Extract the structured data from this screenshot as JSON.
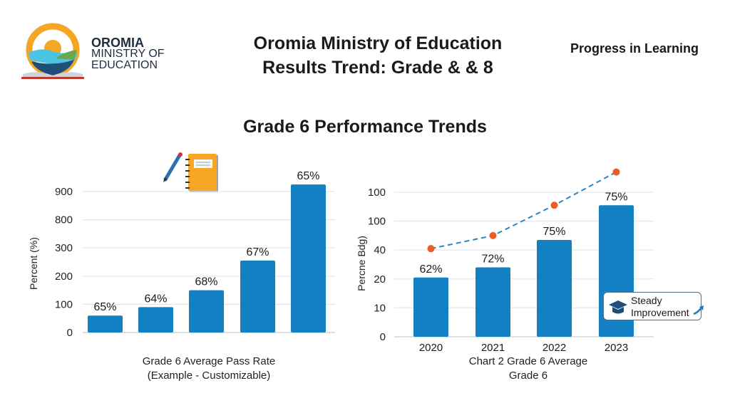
{
  "logo": {
    "line1": "OROMIA",
    "line2": "MINISTRY OF",
    "line3": "EDUCATION"
  },
  "header": {
    "title_line1": "Oromia Ministry of Education",
    "title_line2": "Results Trend: Grade & & 8",
    "tagline": "Progress in Learning"
  },
  "section_title": "Grade 6 Performance Trends",
  "colors": {
    "bar": "#1480c4",
    "line": "#2a86c0",
    "marker": "#ee5a24",
    "grid": "#e3e6ea"
  },
  "icons": [
    "pencil-icon",
    "notebook-icon",
    "graduation-cap-icon",
    "trend-arrow-icon"
  ],
  "annotation": {
    "line1": "Steady",
    "line2": "Improvement"
  },
  "chart_data": [
    {
      "type": "bar",
      "ylabel": "Percent (%)",
      "xlabel_line1": "Grade 6 Average Pass Rate",
      "xlabel_line2": "(Example - Customizable)",
      "yticks": [
        "0",
        "100",
        "200",
        "300",
        "800",
        "900"
      ],
      "grid": true,
      "bar_levels_fraction_of_axis": [
        0.12,
        0.18,
        0.3,
        0.51,
        1.05
      ],
      "data_labels": [
        "65%",
        "64%",
        "68%",
        "67%",
        "65%"
      ]
    },
    {
      "type": "bar",
      "ylabel": "Percne Bdg)",
      "xlabel_line1": "Chart 2 Grade 6 Average",
      "xlabel_line2": "Grade 6",
      "categories": [
        "2020",
        "2021",
        "2022",
        "2023"
      ],
      "yticks": [
        "0",
        "10",
        "20",
        "40",
        "100",
        "100"
      ],
      "grid": true,
      "bar_levels_fraction_of_axis": [
        0.41,
        0.48,
        0.67,
        0.91
      ],
      "data_labels": [
        "62%",
        "72%",
        "75%",
        "75%"
      ],
      "trend_line": {
        "style": "dashed",
        "levels_fraction_of_axis": [
          0.61,
          0.7,
          0.91,
          1.14
        ]
      }
    }
  ]
}
